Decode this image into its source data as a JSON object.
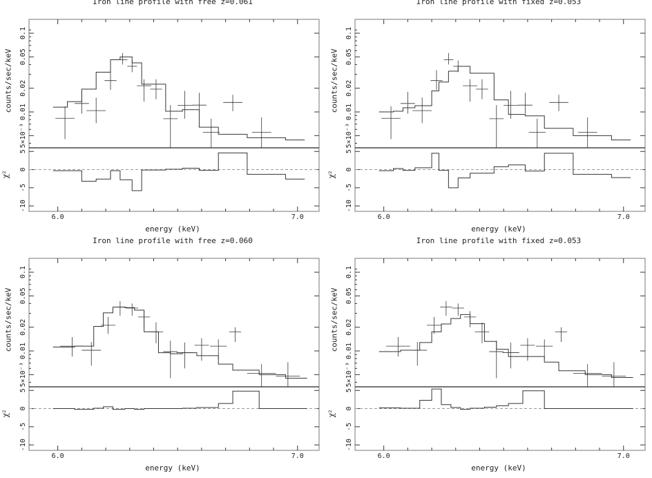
{
  "chart_data": [
    {
      "type": "line",
      "title": "Iron line profile with free z=0.061",
      "xlabel": "energy (keV)",
      "ylabel": "counts/sec/keV",
      "resid_label": "χ²",
      "xticks": [
        "6.0",
        "7.0"
      ],
      "yticks": [
        "5×10⁻³",
        "0.01",
        "0.02",
        "0.05",
        "0.1"
      ],
      "rticks": [
        "5",
        "0",
        "-5",
        "-10"
      ],
      "xlim": [
        5.88,
        7.09
      ],
      "ylim": [
        0.0035,
        0.15
      ],
      "rlim": [
        -11.5,
        6
      ],
      "model_edges": [
        5.98,
        6.04,
        6.1,
        6.16,
        6.22,
        6.26,
        6.31,
        6.35,
        6.45,
        6.52,
        6.59,
        6.67,
        6.79,
        6.95,
        7.03
      ],
      "model_values": [
        0.0115,
        0.0135,
        0.0195,
        0.032,
        0.046,
        0.05,
        0.042,
        0.0225,
        0.0102,
        0.0107,
        0.0064,
        0.0052,
        0.0047,
        0.0044
      ],
      "data_points": [
        {
          "x": 6.03,
          "xerr": 0.04,
          "y": 0.0083,
          "ylo": 0.0045,
          "yhi": 0.0118
        },
        {
          "x": 6.1,
          "xerr": 0.03,
          "y": 0.0128,
          "ylo": 0.0095,
          "yhi": 0.018
        },
        {
          "x": 6.16,
          "xerr": 0.04,
          "y": 0.0104,
          "ylo": 0.0072,
          "yhi": 0.0152
        },
        {
          "x": 6.22,
          "xerr": 0.025,
          "y": 0.025,
          "ylo": 0.019,
          "yhi": 0.034
        },
        {
          "x": 6.27,
          "xerr": 0.02,
          "y": 0.046,
          "ylo": 0.04,
          "yhi": 0.056
        },
        {
          "x": 6.31,
          "xerr": 0.02,
          "y": 0.038,
          "ylo": 0.032,
          "yhi": 0.045
        },
        {
          "x": 6.36,
          "xerr": 0.03,
          "y": 0.0215,
          "ylo": 0.0135,
          "yhi": 0.026
        },
        {
          "x": 6.41,
          "xerr": 0.025,
          "y": 0.0195,
          "ylo": 0.0145,
          "yhi": 0.026
        },
        {
          "x": 6.47,
          "xerr": 0.03,
          "y": 0.0082,
          "ylo": 0.0035,
          "yhi": 0.0122
        },
        {
          "x": 6.53,
          "xerr": 0.03,
          "y": 0.0121,
          "ylo": 0.0082,
          "yhi": 0.0185
        },
        {
          "x": 6.59,
          "xerr": 0.03,
          "y": 0.0122,
          "ylo": 0.0095,
          "yhi": 0.0175
        },
        {
          "x": 6.64,
          "xerr": 0.035,
          "y": 0.0055,
          "ylo": 0.0035,
          "yhi": 0.0082
        },
        {
          "x": 6.73,
          "xerr": 0.04,
          "y": 0.0132,
          "ylo": 0.0102,
          "yhi": 0.0165
        },
        {
          "x": 6.85,
          "xerr": 0.04,
          "y": 0.0055,
          "ylo": 0.0035,
          "yhi": 0.0085
        }
      ],
      "resid_values": [
        -0.3,
        -0.3,
        -3.2,
        -2.6,
        -0.3,
        -2.8,
        -5.8,
        -0.1,
        0.1,
        0.4,
        -0.2,
        4.6,
        -1.3,
        -2.6
      ]
    },
    {
      "type": "line",
      "title": "Iron line profile with fixed z=0.053",
      "xlabel": "energy (keV)",
      "ylabel": "counts/sec/keV",
      "resid_label": "χ²",
      "xticks": [
        "6.0",
        "7.0"
      ],
      "yticks": [
        "5×10⁻³",
        "0.01",
        "0.02",
        "0.05",
        "0.1"
      ],
      "rticks": [
        "5",
        "0",
        "-5",
        "-10"
      ],
      "xlim": [
        5.88,
        7.09
      ],
      "ylim": [
        0.0035,
        0.15
      ],
      "rlim": [
        -11.5,
        6
      ],
      "model_edges": [
        5.98,
        6.04,
        6.08,
        6.13,
        6.2,
        6.23,
        6.27,
        6.31,
        6.36,
        6.46,
        6.52,
        6.59,
        6.67,
        6.79,
        6.95,
        7.03
      ],
      "model_values": [
        0.01,
        0.0102,
        0.0113,
        0.012,
        0.0185,
        0.024,
        0.033,
        0.038,
        0.031,
        0.0142,
        0.0093,
        0.0089,
        0.0062,
        0.005,
        0.0044
      ],
      "data_points": [
        {
          "x": 6.03,
          "xerr": 0.04,
          "y": 0.0083,
          "ylo": 0.0045,
          "yhi": 0.0118
        },
        {
          "x": 6.1,
          "xerr": 0.03,
          "y": 0.0128,
          "ylo": 0.0095,
          "yhi": 0.018
        },
        {
          "x": 6.16,
          "xerr": 0.04,
          "y": 0.0104,
          "ylo": 0.0072,
          "yhi": 0.0152
        },
        {
          "x": 6.22,
          "xerr": 0.025,
          "y": 0.025,
          "ylo": 0.019,
          "yhi": 0.034
        },
        {
          "x": 6.27,
          "xerr": 0.02,
          "y": 0.046,
          "ylo": 0.04,
          "yhi": 0.056
        },
        {
          "x": 6.31,
          "xerr": 0.02,
          "y": 0.038,
          "ylo": 0.032,
          "yhi": 0.045
        },
        {
          "x": 6.36,
          "xerr": 0.03,
          "y": 0.0215,
          "ylo": 0.0135,
          "yhi": 0.026
        },
        {
          "x": 6.41,
          "xerr": 0.025,
          "y": 0.0195,
          "ylo": 0.0145,
          "yhi": 0.026
        },
        {
          "x": 6.47,
          "xerr": 0.03,
          "y": 0.0082,
          "ylo": 0.0035,
          "yhi": 0.0122
        },
        {
          "x": 6.53,
          "xerr": 0.03,
          "y": 0.0121,
          "ylo": 0.0082,
          "yhi": 0.0185
        },
        {
          "x": 6.59,
          "xerr": 0.03,
          "y": 0.0122,
          "ylo": 0.0095,
          "yhi": 0.0175
        },
        {
          "x": 6.64,
          "xerr": 0.035,
          "y": 0.0055,
          "ylo": 0.0035,
          "yhi": 0.0082
        },
        {
          "x": 6.73,
          "xerr": 0.04,
          "y": 0.0132,
          "ylo": 0.0102,
          "yhi": 0.0165
        },
        {
          "x": 6.85,
          "xerr": 0.04,
          "y": 0.0055,
          "ylo": 0.0035,
          "yhi": 0.0085
        }
      ],
      "resid_values": [
        -0.3,
        0.3,
        -0.2,
        0.5,
        4.5,
        -0.2,
        -5.0,
        -2.3,
        -1.0,
        0.8,
        1.3,
        -0.4,
        4.5,
        -1.3,
        -2.2
      ]
    },
    {
      "type": "line",
      "title": "Iron line profile with free z=0.060",
      "xlabel": "energy (keV)",
      "ylabel": "counts/sec/keV",
      "resid_label": "χ²",
      "xticks": [
        "6.0",
        "7.0"
      ],
      "yticks": [
        "5×10⁻³",
        "0.01",
        "0.02",
        "0.05",
        "0.1"
      ],
      "rticks": [
        "5",
        "0",
        "-5",
        "-10"
      ],
      "xlim": [
        5.88,
        7.09
      ],
      "ylim": [
        0.0035,
        0.15
      ],
      "rlim": [
        -11.5,
        6
      ],
      "model_edges": [
        5.98,
        6.07,
        6.15,
        6.19,
        6.23,
        6.28,
        6.32,
        6.36,
        6.42,
        6.47,
        6.52,
        6.58,
        6.67,
        6.73,
        6.84,
        6.95,
        7.04
      ],
      "model_values": [
        0.0112,
        0.0115,
        0.0205,
        0.0305,
        0.036,
        0.0355,
        0.033,
        0.0175,
        0.0095,
        0.0092,
        0.0095,
        0.0087,
        0.0068,
        0.0057,
        0.005,
        0.0045
      ],
      "data_points": [
        {
          "x": 6.06,
          "xerr": 0.05,
          "y": 0.0115,
          "ylo": 0.0085,
          "yhi": 0.015
        },
        {
          "x": 6.14,
          "xerr": 0.04,
          "y": 0.0102,
          "ylo": 0.0065,
          "yhi": 0.013
        },
        {
          "x": 6.21,
          "xerr": 0.03,
          "y": 0.0212,
          "ylo": 0.0165,
          "yhi": 0.027
        },
        {
          "x": 6.26,
          "xerr": 0.025,
          "y": 0.036,
          "ylo": 0.028,
          "yhi": 0.043
        },
        {
          "x": 6.31,
          "xerr": 0.025,
          "y": 0.035,
          "ylo": 0.028,
          "yhi": 0.04
        },
        {
          "x": 6.36,
          "xerr": 0.025,
          "y": 0.027,
          "ylo": 0.02,
          "yhi": 0.032
        },
        {
          "x": 6.41,
          "xerr": 0.03,
          "y": 0.0175,
          "ylo": 0.0125,
          "yhi": 0.023
        },
        {
          "x": 6.47,
          "xerr": 0.03,
          "y": 0.0098,
          "ylo": 0.0045,
          "yhi": 0.0135
        },
        {
          "x": 6.53,
          "xerr": 0.035,
          "y": 0.0095,
          "ylo": 0.006,
          "yhi": 0.0128
        },
        {
          "x": 6.6,
          "xerr": 0.03,
          "y": 0.0118,
          "ylo": 0.0075,
          "yhi": 0.0145
        },
        {
          "x": 6.67,
          "xerr": 0.035,
          "y": 0.0115,
          "ylo": 0.0078,
          "yhi": 0.014
        },
        {
          "x": 6.74,
          "xerr": 0.025,
          "y": 0.0175,
          "ylo": 0.013,
          "yhi": 0.02
        },
        {
          "x": 6.85,
          "xerr": 0.06,
          "y": 0.0052,
          "ylo": 0.0035,
          "yhi": 0.0068
        },
        {
          "x": 6.96,
          "xerr": 0.05,
          "y": 0.0048,
          "ylo": 0.0035,
          "yhi": 0.0072
        }
      ],
      "resid_values": [
        0.0,
        -0.2,
        0.1,
        0.5,
        -0.2,
        0.0,
        -0.2,
        0.0,
        0.0,
        0.0,
        0.1,
        0.3,
        1.4,
        4.8,
        0.0,
        0.0
      ]
    },
    {
      "type": "line",
      "title": "Iron line profile with fixed z=0.053",
      "xlabel": "energy (keV)",
      "ylabel": "counts/sec/keV",
      "resid_label": "χ²",
      "xticks": [
        "6.0",
        "7.0"
      ],
      "yticks": [
        "5×10⁻³",
        "0.01",
        "0.02",
        "0.05",
        "0.1"
      ],
      "rticks": [
        "5",
        "0",
        "-5",
        "-10"
      ],
      "xlim": [
        5.88,
        7.09
      ],
      "ylim": [
        0.0035,
        0.15
      ],
      "rlim": [
        -11.5,
        6
      ],
      "model_edges": [
        5.98,
        6.07,
        6.15,
        6.2,
        6.24,
        6.28,
        6.32,
        6.36,
        6.42,
        6.47,
        6.52,
        6.58,
        6.67,
        6.73,
        6.84,
        6.95,
        7.04
      ],
      "model_values": [
        0.0098,
        0.0102,
        0.0128,
        0.0175,
        0.022,
        0.0258,
        0.029,
        0.0222,
        0.0132,
        0.0105,
        0.0085,
        0.0085,
        0.0072,
        0.0056,
        0.005,
        0.0046
      ],
      "data_points": [
        {
          "x": 6.06,
          "xerr": 0.05,
          "y": 0.0115,
          "ylo": 0.0085,
          "yhi": 0.015
        },
        {
          "x": 6.14,
          "xerr": 0.04,
          "y": 0.0102,
          "ylo": 0.0065,
          "yhi": 0.013
        },
        {
          "x": 6.21,
          "xerr": 0.03,
          "y": 0.0212,
          "ylo": 0.0165,
          "yhi": 0.027
        },
        {
          "x": 6.26,
          "xerr": 0.025,
          "y": 0.036,
          "ylo": 0.028,
          "yhi": 0.043
        },
        {
          "x": 6.31,
          "xerr": 0.025,
          "y": 0.035,
          "ylo": 0.028,
          "yhi": 0.04
        },
        {
          "x": 6.36,
          "xerr": 0.025,
          "y": 0.027,
          "ylo": 0.02,
          "yhi": 0.032
        },
        {
          "x": 6.41,
          "xerr": 0.03,
          "y": 0.0175,
          "ylo": 0.0125,
          "yhi": 0.023
        },
        {
          "x": 6.47,
          "xerr": 0.03,
          "y": 0.0098,
          "ylo": 0.0045,
          "yhi": 0.0135
        },
        {
          "x": 6.53,
          "xerr": 0.035,
          "y": 0.0095,
          "ylo": 0.006,
          "yhi": 0.0128
        },
        {
          "x": 6.6,
          "xerr": 0.03,
          "y": 0.0118,
          "ylo": 0.0075,
          "yhi": 0.0145
        },
        {
          "x": 6.67,
          "xerr": 0.035,
          "y": 0.0115,
          "ylo": 0.0078,
          "yhi": 0.014
        },
        {
          "x": 6.74,
          "xerr": 0.025,
          "y": 0.0175,
          "ylo": 0.013,
          "yhi": 0.02
        },
        {
          "x": 6.85,
          "xerr": 0.06,
          "y": 0.0052,
          "ylo": 0.0035,
          "yhi": 0.0068
        },
        {
          "x": 6.96,
          "xerr": 0.05,
          "y": 0.0048,
          "ylo": 0.0035,
          "yhi": 0.0072
        }
      ],
      "resid_values": [
        0.2,
        0.1,
        2.3,
        5.4,
        1.1,
        0.3,
        -0.2,
        0.1,
        0.4,
        0.8,
        1.4,
        4.9,
        0.0,
        0.0,
        0.0,
        0.0
      ]
    }
  ]
}
